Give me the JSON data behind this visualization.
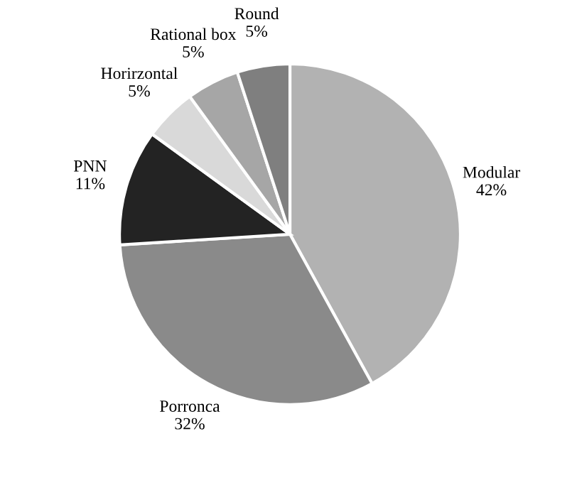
{
  "chart_data": {
    "type": "pie",
    "categories": [
      "Modular",
      "Porronca",
      "PNN",
      "Horirzontal",
      "Rational box",
      "Round"
    ],
    "values": [
      42,
      32,
      11,
      5,
      5,
      5
    ],
    "value_labels": [
      "42%",
      "32%",
      "11%",
      "5%",
      "5%",
      "5%"
    ],
    "colors": [
      "#b2b2b2",
      "#8a8a8a",
      "#232323",
      "#d9d9d9",
      "#a6a6a6",
      "#7f7f7f"
    ],
    "legend": false
  }
}
